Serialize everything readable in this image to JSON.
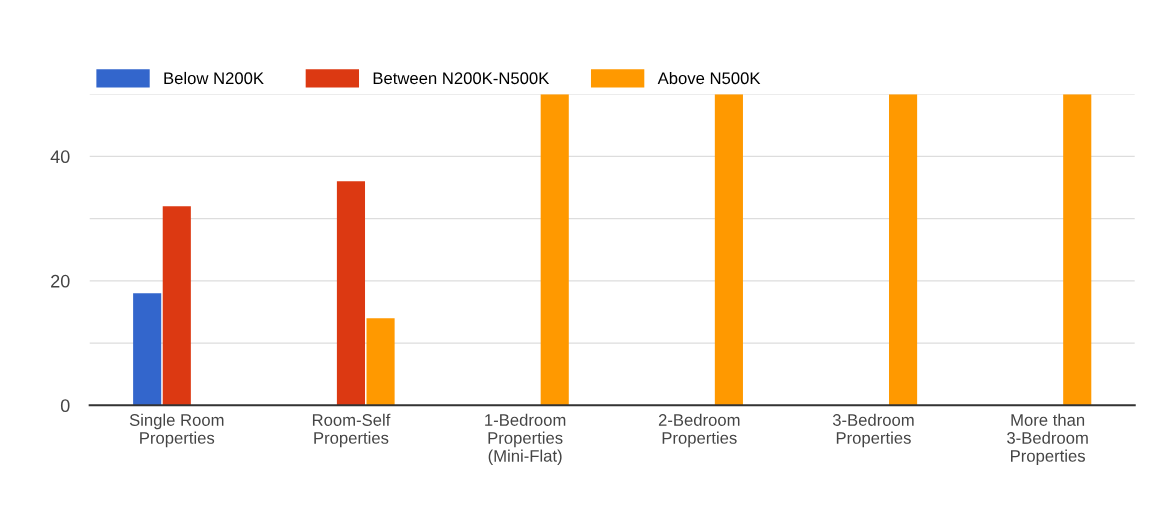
{
  "chart_data": {
    "type": "bar",
    "categories": [
      "Single Room Properties",
      "Room-Self Properties",
      "1-Bedroom Properties (Mini-Flat)",
      "2-Bedroom Properties",
      "3-Bedroom Properties",
      "More than 3-Bedroom Properties"
    ],
    "series": [
      {
        "name": "Below N200K",
        "color": "#3366cc",
        "values": [
          18,
          null,
          null,
          null,
          null,
          null
        ]
      },
      {
        "name": "Between N200K-N500K",
        "color": "#dc3912",
        "values": [
          32,
          36,
          null,
          null,
          null,
          null
        ]
      },
      {
        "name": "Above N500K",
        "color": "#ff9900",
        "values": [
          null,
          14,
          50,
          50,
          50,
          50
        ]
      }
    ],
    "ylim": [
      0,
      50
    ],
    "yticks": [
      0,
      {
        "value": 10,
        "label": null
      },
      20,
      {
        "value": 30,
        "label": null
      },
      40,
      {
        "value": 50,
        "label": null
      }
    ],
    "grid": "y",
    "legend": "top left"
  }
}
